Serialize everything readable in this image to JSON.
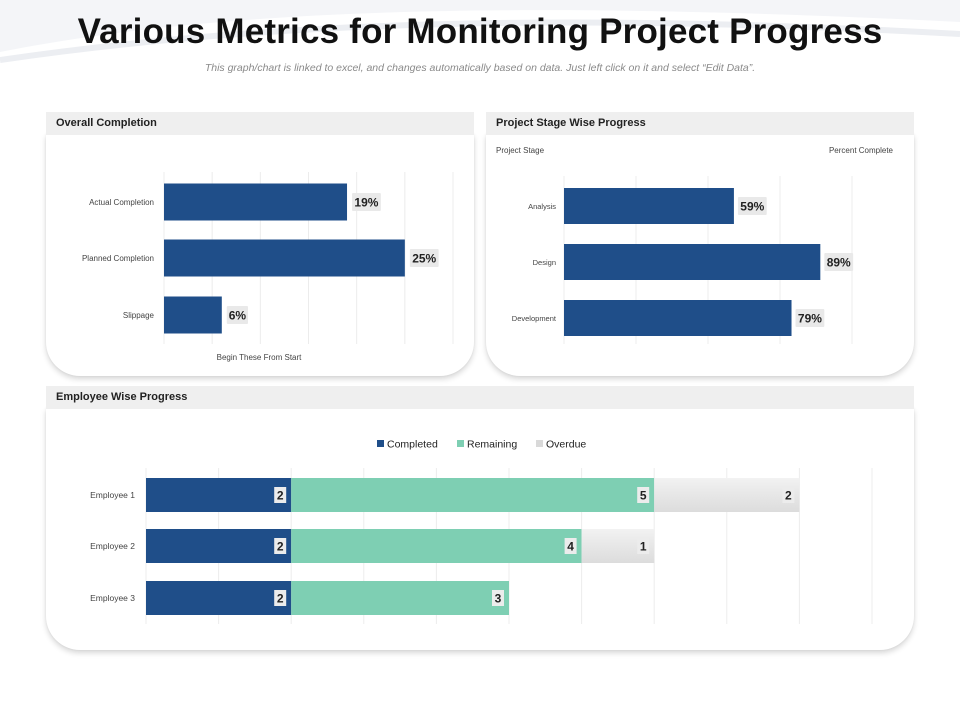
{
  "page": {
    "title": "Various Metrics for Monitoring Project Progress",
    "subtitle": "This graph/chart is linked to excel, and changes automatically based on data. Just left click on it and select “Edit Data”."
  },
  "colors": {
    "completed": "#1f4e89",
    "remaining": "#7ecfb3",
    "overdue": "#e6e6e6",
    "header_bg": "#efefef"
  },
  "panels": {
    "overall": {
      "title": "Overall Completion"
    },
    "stage": {
      "title": "Project Stage Wise Progress"
    },
    "employee": {
      "title": "Employee Wise Progress"
    }
  },
  "chart_data": [
    {
      "type": "bar",
      "orientation": "horizontal",
      "title": "Overall Completion",
      "categories": [
        "Actual Completion",
        "Planned Completion",
        "Slippage"
      ],
      "values": [
        19,
        25,
        6
      ],
      "value_labels": [
        "19%",
        "25%",
        "6%"
      ],
      "xlabel": "Begin These From Start",
      "xlim": [
        0,
        30
      ],
      "grid": true,
      "color": "#1f4e89"
    },
    {
      "type": "bar",
      "orientation": "horizontal",
      "title": "Project Stage Wise Progress",
      "categories": [
        "Analysis",
        "Design",
        "Development"
      ],
      "values": [
        59,
        89,
        79
      ],
      "value_labels": [
        "59%",
        "89%",
        "79%"
      ],
      "category_header": "Project Stage",
      "value_header": "Percent Complete",
      "xlim": [
        0,
        100
      ],
      "grid": true,
      "color": "#1f4e89"
    },
    {
      "type": "bar",
      "orientation": "horizontal",
      "stacked": true,
      "title": "Employee Wise Progress",
      "categories": [
        "Employee 1",
        "Employee 2",
        "Employee 3"
      ],
      "series": [
        {
          "name": "Completed",
          "values": [
            2,
            2,
            2
          ],
          "color": "#1f4e89"
        },
        {
          "name": "Remaining",
          "values": [
            5,
            4,
            3
          ],
          "color": "#7ecfb3"
        },
        {
          "name": "Overdue",
          "values": [
            2,
            1,
            0
          ],
          "color": "#e6e6e6"
        }
      ],
      "xlim": [
        0,
        10.5
      ],
      "legend": "top",
      "grid": true
    }
  ]
}
